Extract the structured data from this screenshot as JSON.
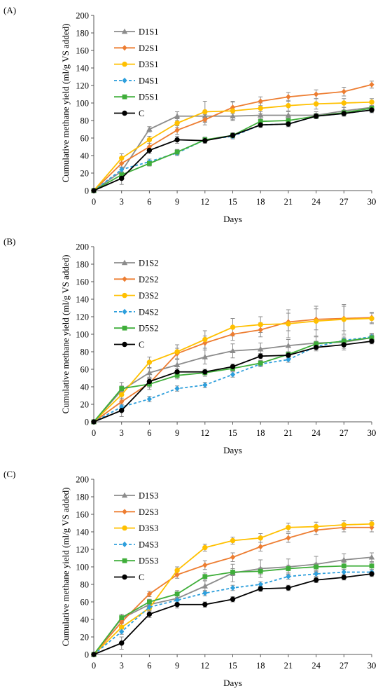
{
  "colors": {
    "D1": "#8c8c8c",
    "D2": "#ed7d31",
    "D3": "#ffc000",
    "D4": "#2e9fdc",
    "D5": "#3fae3a",
    "C": "#000000",
    "axis": "#595959",
    "errorbar": "#8c8c8c"
  },
  "chart_data": [
    {
      "panel_label": "(A)",
      "type": "line",
      "xlabel": "Days",
      "ylabel": "Cumulative methane yield (ml/g VS added)",
      "xlim": [
        0,
        30
      ],
      "ylim": [
        0,
        200
      ],
      "x_ticks": [
        0,
        3,
        6,
        9,
        12,
        15,
        18,
        21,
        24,
        27,
        30
      ],
      "y_ticks": [
        0,
        20,
        40,
        60,
        80,
        100,
        120,
        140,
        160,
        180,
        200
      ],
      "x": [
        0,
        3,
        6,
        9,
        12,
        15,
        18,
        21,
        24,
        27,
        30
      ],
      "legend_position": "top-left",
      "grid": false,
      "series": [
        {
          "name": "D1S1",
          "key": "D1",
          "marker": "triangle",
          "dashed": false,
          "values": [
            0,
            22,
            70,
            85,
            85,
            85,
            86,
            86,
            86,
            91,
            95
          ],
          "errors": [
            0,
            4,
            3,
            5,
            6,
            5,
            4,
            4,
            4,
            4,
            4
          ]
        },
        {
          "name": "D2S1",
          "key": "D2",
          "marker": "diamond",
          "dashed": false,
          "values": [
            0,
            31,
            50,
            69,
            81,
            95,
            102,
            107,
            110,
            113,
            121
          ],
          "errors": [
            0,
            5,
            4,
            5,
            6,
            7,
            5,
            5,
            5,
            5,
            4
          ]
        },
        {
          "name": "D3S1",
          "key": "D3",
          "marker": "circle",
          "dashed": false,
          "values": [
            0,
            37,
            58,
            77,
            90,
            91,
            94,
            97,
            99,
            100,
            101
          ],
          "errors": [
            0,
            5,
            4,
            5,
            12,
            10,
            6,
            6,
            6,
            5,
            4
          ]
        },
        {
          "name": "D4S1",
          "key": "D4",
          "marker": "diamond",
          "dashed": true,
          "values": [
            0,
            24,
            33,
            43,
            58,
            62,
            75,
            76,
            85,
            88,
            92
          ],
          "errors": [
            0,
            3,
            3,
            3,
            3,
            3,
            3,
            3,
            3,
            3,
            3
          ]
        },
        {
          "name": "D5S1",
          "key": "D5",
          "marker": "square",
          "dashed": false,
          "values": [
            0,
            18,
            31,
            44,
            58,
            63,
            79,
            80,
            85,
            89,
            94
          ],
          "errors": [
            0,
            3,
            3,
            3,
            3,
            3,
            3,
            3,
            3,
            3,
            3
          ]
        },
        {
          "name": "C",
          "key": "C",
          "marker": "circle",
          "dashed": false,
          "values": [
            0,
            14,
            46,
            58,
            57,
            63,
            75,
            76,
            85,
            88,
            92
          ],
          "errors": [
            0,
            7,
            4,
            4,
            3,
            3,
            3,
            3,
            3,
            3,
            3
          ]
        }
      ]
    },
    {
      "panel_label": "(B)",
      "type": "line",
      "xlabel": "Days",
      "ylabel": "Cumulative methane yield (ml/g VS added)",
      "xlim": [
        0,
        30
      ],
      "ylim": [
        0,
        200
      ],
      "x_ticks": [
        0,
        3,
        6,
        9,
        12,
        15,
        18,
        21,
        24,
        27,
        30
      ],
      "y_ticks": [
        0,
        20,
        40,
        60,
        80,
        100,
        120,
        140,
        160,
        180,
        200
      ],
      "x": [
        0,
        3,
        6,
        9,
        12,
        15,
        18,
        21,
        24,
        27,
        30
      ],
      "legend_position": "top-left",
      "grid": false,
      "series": [
        {
          "name": "D1S2",
          "key": "D1",
          "marker": "triangle",
          "dashed": false,
          "values": [
            0,
            36,
            56,
            65,
            74,
            81,
            83,
            87,
            90,
            91,
            96
          ],
          "errors": [
            0,
            5,
            5,
            6,
            8,
            8,
            7,
            7,
            7,
            7,
            5
          ]
        },
        {
          "name": "D2S2",
          "key": "D2",
          "marker": "diamond",
          "dashed": false,
          "values": [
            0,
            23,
            44,
            78,
            90,
            100,
            105,
            114,
            117,
            118,
            119
          ],
          "errors": [
            0,
            4,
            5,
            6,
            8,
            7,
            8,
            10,
            12,
            14,
            6
          ]
        },
        {
          "name": "D3S2",
          "key": "D3",
          "marker": "circle",
          "dashed": false,
          "values": [
            0,
            31,
            68,
            80,
            94,
            108,
            111,
            112,
            115,
            117,
            118
          ],
          "errors": [
            0,
            6,
            6,
            8,
            10,
            10,
            9,
            16,
            17,
            17,
            6
          ]
        },
        {
          "name": "D4S2",
          "key": "D4",
          "marker": "diamond",
          "dashed": true,
          "values": [
            0,
            17,
            26,
            38,
            42,
            54,
            66,
            71,
            86,
            93,
            97
          ],
          "errors": [
            0,
            3,
            3,
            3,
            3,
            3,
            3,
            3,
            3,
            3,
            3
          ]
        },
        {
          "name": "D5S2",
          "key": "D5",
          "marker": "square",
          "dashed": false,
          "values": [
            0,
            38,
            43,
            53,
            56,
            61,
            67,
            77,
            89,
            92,
            96
          ],
          "errors": [
            0,
            7,
            6,
            4,
            4,
            3,
            3,
            3,
            3,
            3,
            3
          ]
        },
        {
          "name": "C",
          "key": "C",
          "marker": "circle",
          "dashed": false,
          "values": [
            0,
            13,
            46,
            57,
            57,
            63,
            75,
            76,
            85,
            88,
            92
          ],
          "errors": [
            0,
            7,
            4,
            4,
            3,
            3,
            3,
            3,
            4,
            6,
            3
          ]
        }
      ]
    },
    {
      "panel_label": "(C)",
      "type": "line",
      "xlabel": "Days",
      "ylabel": "Cumulative methane yield (ml/g VS added)",
      "xlim": [
        0,
        30
      ],
      "ylim": [
        0,
        200
      ],
      "x_ticks": [
        0,
        3,
        6,
        9,
        12,
        15,
        18,
        21,
        24,
        27,
        30
      ],
      "y_ticks": [
        0,
        20,
        40,
        60,
        80,
        100,
        120,
        140,
        160,
        180,
        200
      ],
      "x": [
        0,
        3,
        6,
        9,
        12,
        15,
        18,
        21,
        24,
        27,
        30
      ],
      "legend_position": "top-left",
      "grid": false,
      "series": [
        {
          "name": "D1S3",
          "key": "D1",
          "marker": "triangle",
          "dashed": false,
          "values": [
            0,
            41,
            57,
            64,
            78,
            93,
            98,
            100,
            103,
            108,
            111
          ],
          "errors": [
            0,
            5,
            4,
            5,
            6,
            10,
            10,
            9,
            9,
            7,
            5
          ]
        },
        {
          "name": "D2S3",
          "key": "D2",
          "marker": "diamond",
          "dashed": false,
          "values": [
            0,
            37,
            69,
            91,
            102,
            111,
            123,
            133,
            142,
            145,
            145
          ],
          "errors": [
            0,
            4,
            3,
            4,
            5,
            5,
            5,
            5,
            5,
            5,
            5
          ]
        },
        {
          "name": "D3S3",
          "key": "D3",
          "marker": "circle",
          "dashed": false,
          "values": [
            0,
            31,
            53,
            96,
            122,
            130,
            133,
            145,
            146,
            148,
            149
          ],
          "errors": [
            0,
            4,
            4,
            4,
            4,
            4,
            5,
            5,
            5,
            5,
            4
          ]
        },
        {
          "name": "D4S3",
          "key": "D4",
          "marker": "diamond",
          "dashed": true,
          "values": [
            0,
            26,
            54,
            62,
            70,
            76,
            80,
            89,
            92,
            94,
            94
          ],
          "errors": [
            0,
            3,
            3,
            3,
            3,
            3,
            3,
            3,
            3,
            3,
            3
          ]
        },
        {
          "name": "D5S3",
          "key": "D5",
          "marker": "square",
          "dashed": false,
          "values": [
            0,
            42,
            60,
            69,
            89,
            94,
            95,
            98,
            100,
            101,
            101
          ],
          "errors": [
            0,
            4,
            3,
            4,
            4,
            4,
            4,
            4,
            4,
            4,
            4
          ]
        },
        {
          "name": "C",
          "key": "C",
          "marker": "circle",
          "dashed": false,
          "values": [
            0,
            13,
            46,
            57,
            57,
            63,
            75,
            76,
            85,
            88,
            92
          ],
          "errors": [
            0,
            7,
            4,
            4,
            3,
            3,
            3,
            3,
            3,
            3,
            3
          ]
        }
      ]
    }
  ]
}
